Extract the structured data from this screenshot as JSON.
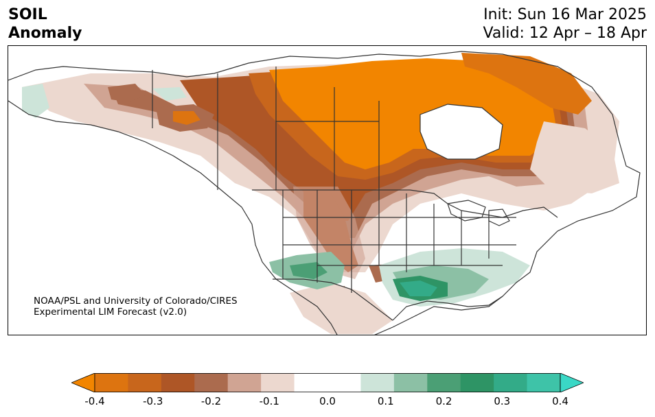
{
  "title": {
    "left_line1": "SOIL",
    "left_line2": "Anomaly",
    "right_line1": "Init: Sun 16 Mar 2025",
    "right_line2": "Valid: 12 Apr – 18 Apr"
  },
  "credit": {
    "line1": "NOAA/PSL and University of Colorado/CIRES",
    "line2": "Experimental LIM Forecast (v2.0)"
  },
  "colorbar": {
    "levels": [
      "-0.4",
      "-0.35",
      "-0.3",
      "-0.25",
      "-0.2",
      "-0.15",
      "-0.1",
      "-0.05",
      "0.05",
      "0.1",
      "0.15",
      "0.2",
      "0.25",
      "0.3",
      "0.35",
      "0.4"
    ],
    "colors": [
      "#f28500",
      "#dd7410",
      "#c8661c",
      "#ae5626",
      "#ab6b4e",
      "#d0a493",
      "#ecd8cf",
      "#ffffff",
      "#ffffff",
      "#cde4d9",
      "#8cc0a5",
      "#4b9f75",
      "#2e9465",
      "#33ab88",
      "#3ec3a8",
      "#3ad8c6"
    ],
    "under_color": "#f28500",
    "over_color": "#3ad8c6",
    "tick_labels": [
      "-0.4",
      "-0.3",
      "-0.2",
      "-0.1",
      "0.0",
      "0.1",
      "0.2",
      "0.3",
      "0.4"
    ]
  },
  "map": {
    "region": "North America",
    "colors": {
      "strong_dry": "#f28500",
      "dry2": "#dd7410",
      "dry3": "#c8661c",
      "dry4": "#ae5626",
      "dry5": "#ab6b4e",
      "dry6": "#d0a493",
      "dry7": "#ecd8cf",
      "wet1": "#cde4d9",
      "wet2": "#8cc0a5",
      "wet3": "#4b9f75",
      "wet4": "#2e9465",
      "wet5": "#33ab88",
      "border": "#333333"
    }
  }
}
